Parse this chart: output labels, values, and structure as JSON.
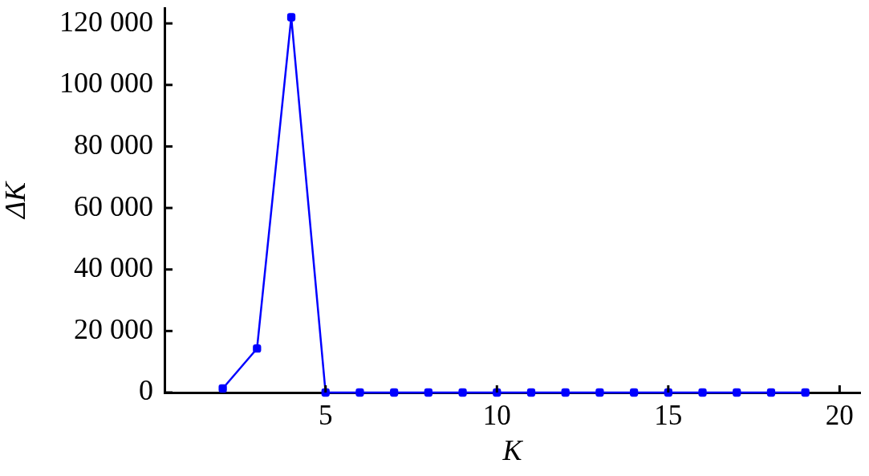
{
  "chart_data": {
    "type": "line",
    "xlabel": "K",
    "ylabel": "ΔK",
    "x": [
      2,
      3,
      4,
      5,
      6,
      7,
      8,
      9,
      10,
      11,
      12,
      13,
      14,
      15,
      16,
      17,
      18,
      19
    ],
    "values": [
      1300,
      14300,
      122000,
      0,
      0,
      0,
      0,
      0,
      0,
      0,
      0,
      0,
      0,
      0,
      0,
      0,
      0,
      0
    ],
    "color": "#0000ff",
    "marker": "square",
    "line_style": "solid",
    "xlim": [
      0.3,
      20.6
    ],
    "xticks": [
      5,
      10,
      15,
      20
    ],
    "ylim": [
      0,
      125000
    ],
    "yticks": [
      0,
      {
        "value": 20000,
        "label": "20 000"
      },
      {
        "value": 40000,
        "label": "40 000"
      },
      {
        "value": 60000,
        "label": "60 000"
      },
      {
        "value": 80000,
        "label": "80 000"
      },
      {
        "value": 100000,
        "label": "100 000"
      },
      {
        "value": 120000,
        "label": "120 000"
      }
    ]
  }
}
